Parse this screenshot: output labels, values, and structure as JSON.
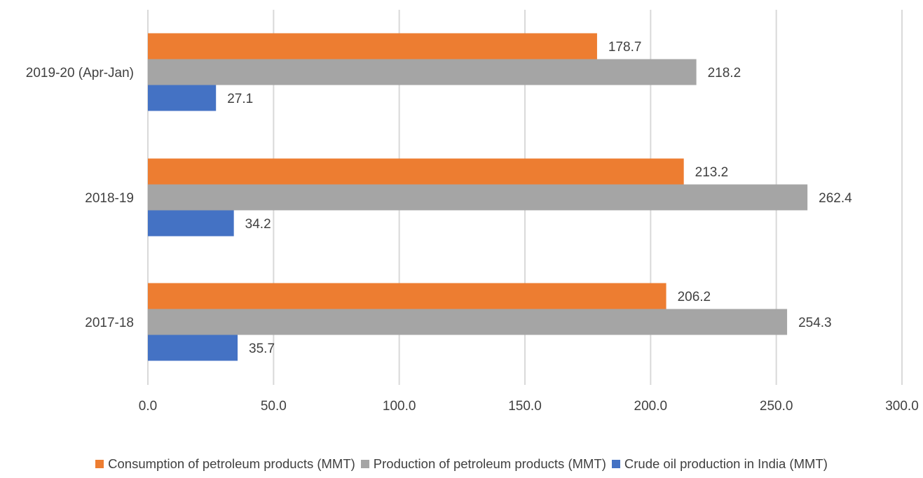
{
  "chart_data": {
    "type": "bar",
    "orientation": "horizontal",
    "categories": [
      "2019-20 (Apr-Jan)",
      "2018-19",
      "2017-18"
    ],
    "series": [
      {
        "name": "Consumption of petroleum products (MMT)",
        "color": "#ED7D31",
        "values": [
          178.7,
          213.2,
          206.2
        ]
      },
      {
        "name": "Production of petroleum products (MMT)",
        "color": "#A5A5A5",
        "values": [
          218.2,
          262.4,
          254.3
        ]
      },
      {
        "name": "Crude oil production in India (MMT)",
        "color": "#4472C4",
        "values": [
          27.1,
          34.2,
          35.7
        ]
      }
    ],
    "xlim": [
      0,
      300
    ],
    "x_ticks": [
      "0.0",
      "50.0",
      "100.0",
      "150.0",
      "200.0",
      "250.0",
      "300.0"
    ],
    "grid": true,
    "legend_position": "bottom",
    "data_labels": true
  }
}
